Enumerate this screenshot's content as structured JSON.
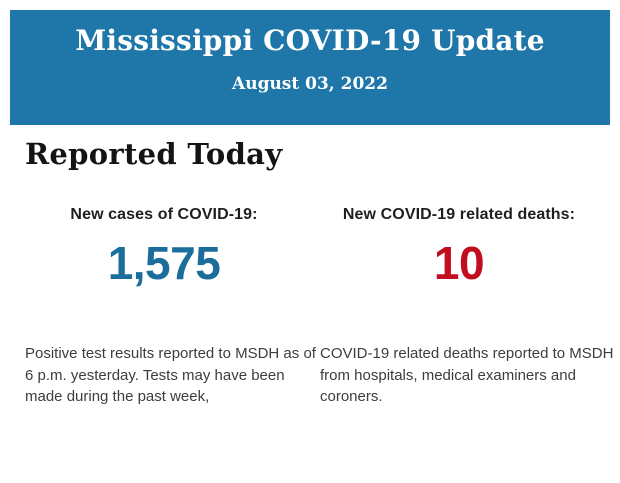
{
  "header": {
    "title": "Mississippi COVID-19 Update",
    "date": "August 03, 2022",
    "background_color": "#1f76a8",
    "text_color": "#ffffff"
  },
  "section": {
    "heading": "Reported Today"
  },
  "stats": [
    {
      "label": "New cases of COVID-19:",
      "value": "1,575",
      "value_color": "#1b6d9c",
      "description": "Positive test results reported to MSDH as of 6 p.m. yesterday. Tests may have been made during the past week,"
    },
    {
      "label": "New COVID-19 related deaths:",
      "value": "10",
      "value_color": "#c10d1e",
      "description": "COVID-19 related deaths reported to MSDH from hospitals, medical examiners and coroners."
    }
  ]
}
